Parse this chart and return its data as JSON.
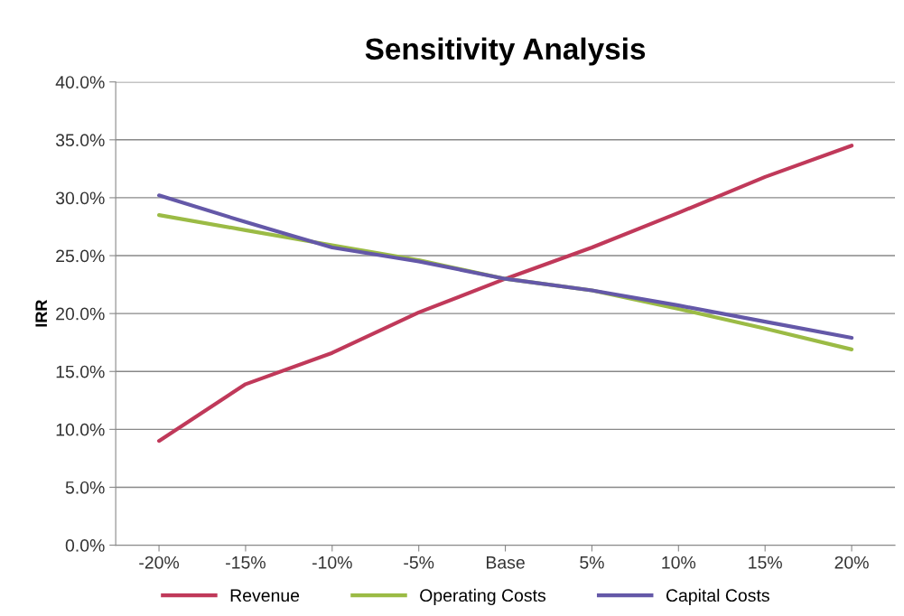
{
  "chart_data": {
    "type": "line",
    "title": "Sensitivity Analysis",
    "ylabel": "IRR",
    "categories": [
      "-20%",
      "-15%",
      "-10%",
      "-5%",
      "Base",
      "5%",
      "10%",
      "15%",
      "20%"
    ],
    "series": [
      {
        "name": "Revenue",
        "color": "#c0395a",
        "values": [
          9.0,
          13.9,
          16.6,
          20.1,
          23.0,
          25.7,
          28.7,
          31.8,
          34.5
        ]
      },
      {
        "name": "Operating Costs",
        "color": "#9bbb45",
        "values": [
          28.5,
          27.2,
          25.9,
          24.6,
          23.0,
          22.0,
          20.4,
          18.7,
          16.9
        ]
      },
      {
        "name": "Capital Costs",
        "color": "#6458a8",
        "values": [
          30.2,
          27.9,
          25.7,
          24.5,
          23.0,
          22.0,
          20.7,
          19.3,
          17.9
        ]
      }
    ],
    "ylim": [
      0,
      40
    ],
    "yticks": [
      {
        "value": 0,
        "label": "0.0%"
      },
      {
        "value": 5,
        "label": "5.0%"
      },
      {
        "value": 10,
        "label": "10.0%"
      },
      {
        "value": 15,
        "label": "15.0%"
      },
      {
        "value": 20,
        "label": "20.0%"
      },
      {
        "value": 25,
        "label": "25.0%"
      },
      {
        "value": 30,
        "label": "30.0%"
      },
      {
        "value": 35,
        "label": "35.0%"
      },
      {
        "value": 40,
        "label": "40.0%"
      }
    ],
    "grid": "y",
    "legend": "bottom",
    "marker": "none",
    "line_style": "solid"
  }
}
